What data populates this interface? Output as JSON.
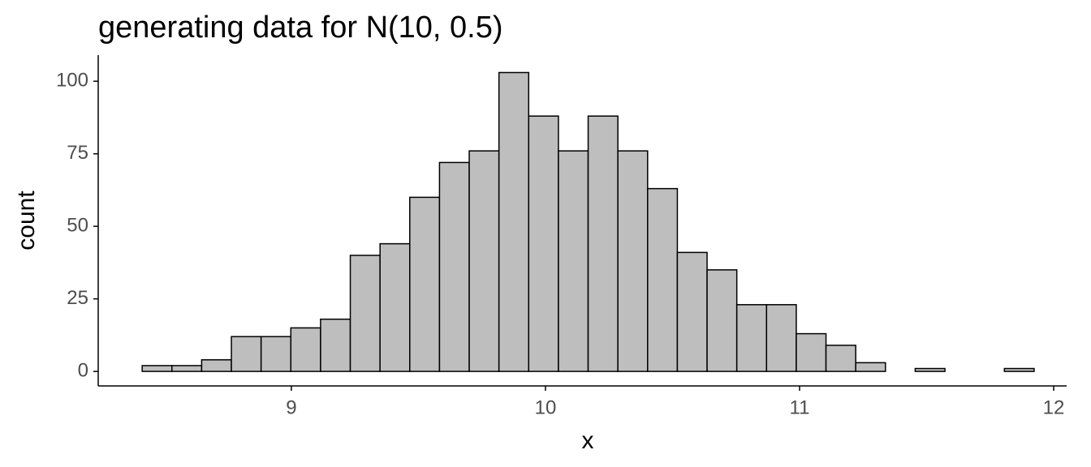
{
  "chart_data": {
    "type": "histogram",
    "title": "generating data for N(10, 0.5)",
    "x_label": "x",
    "y_label": "count",
    "bins": [
      8.413,
      8.53,
      8.647,
      8.764,
      8.881,
      8.998,
      9.115,
      9.232,
      9.349,
      9.466,
      9.583,
      9.7,
      9.817,
      9.934,
      10.051,
      10.168,
      10.285,
      10.402,
      10.519,
      10.636,
      10.753,
      10.87,
      10.987,
      11.104,
      11.221,
      11.338,
      11.455,
      11.572,
      11.689,
      11.806,
      11.923
    ],
    "values": [
      2,
      2,
      4,
      12,
      12,
      15,
      18,
      40,
      44,
      60,
      72,
      76,
      103,
      88,
      76,
      88,
      76,
      63,
      41,
      35,
      23,
      23,
      13,
      9,
      3,
      0,
      1,
      0,
      0,
      1
    ],
    "color": "#bebebe",
    "edge_color": "#000000",
    "xlim": [
      8.24,
      12.051
    ],
    "xticks": [
      9,
      10,
      11,
      12
    ],
    "ylim": [
      -5,
      109
    ],
    "yticks": [
      0,
      25,
      50,
      75,
      100
    ],
    "grid": false
  }
}
